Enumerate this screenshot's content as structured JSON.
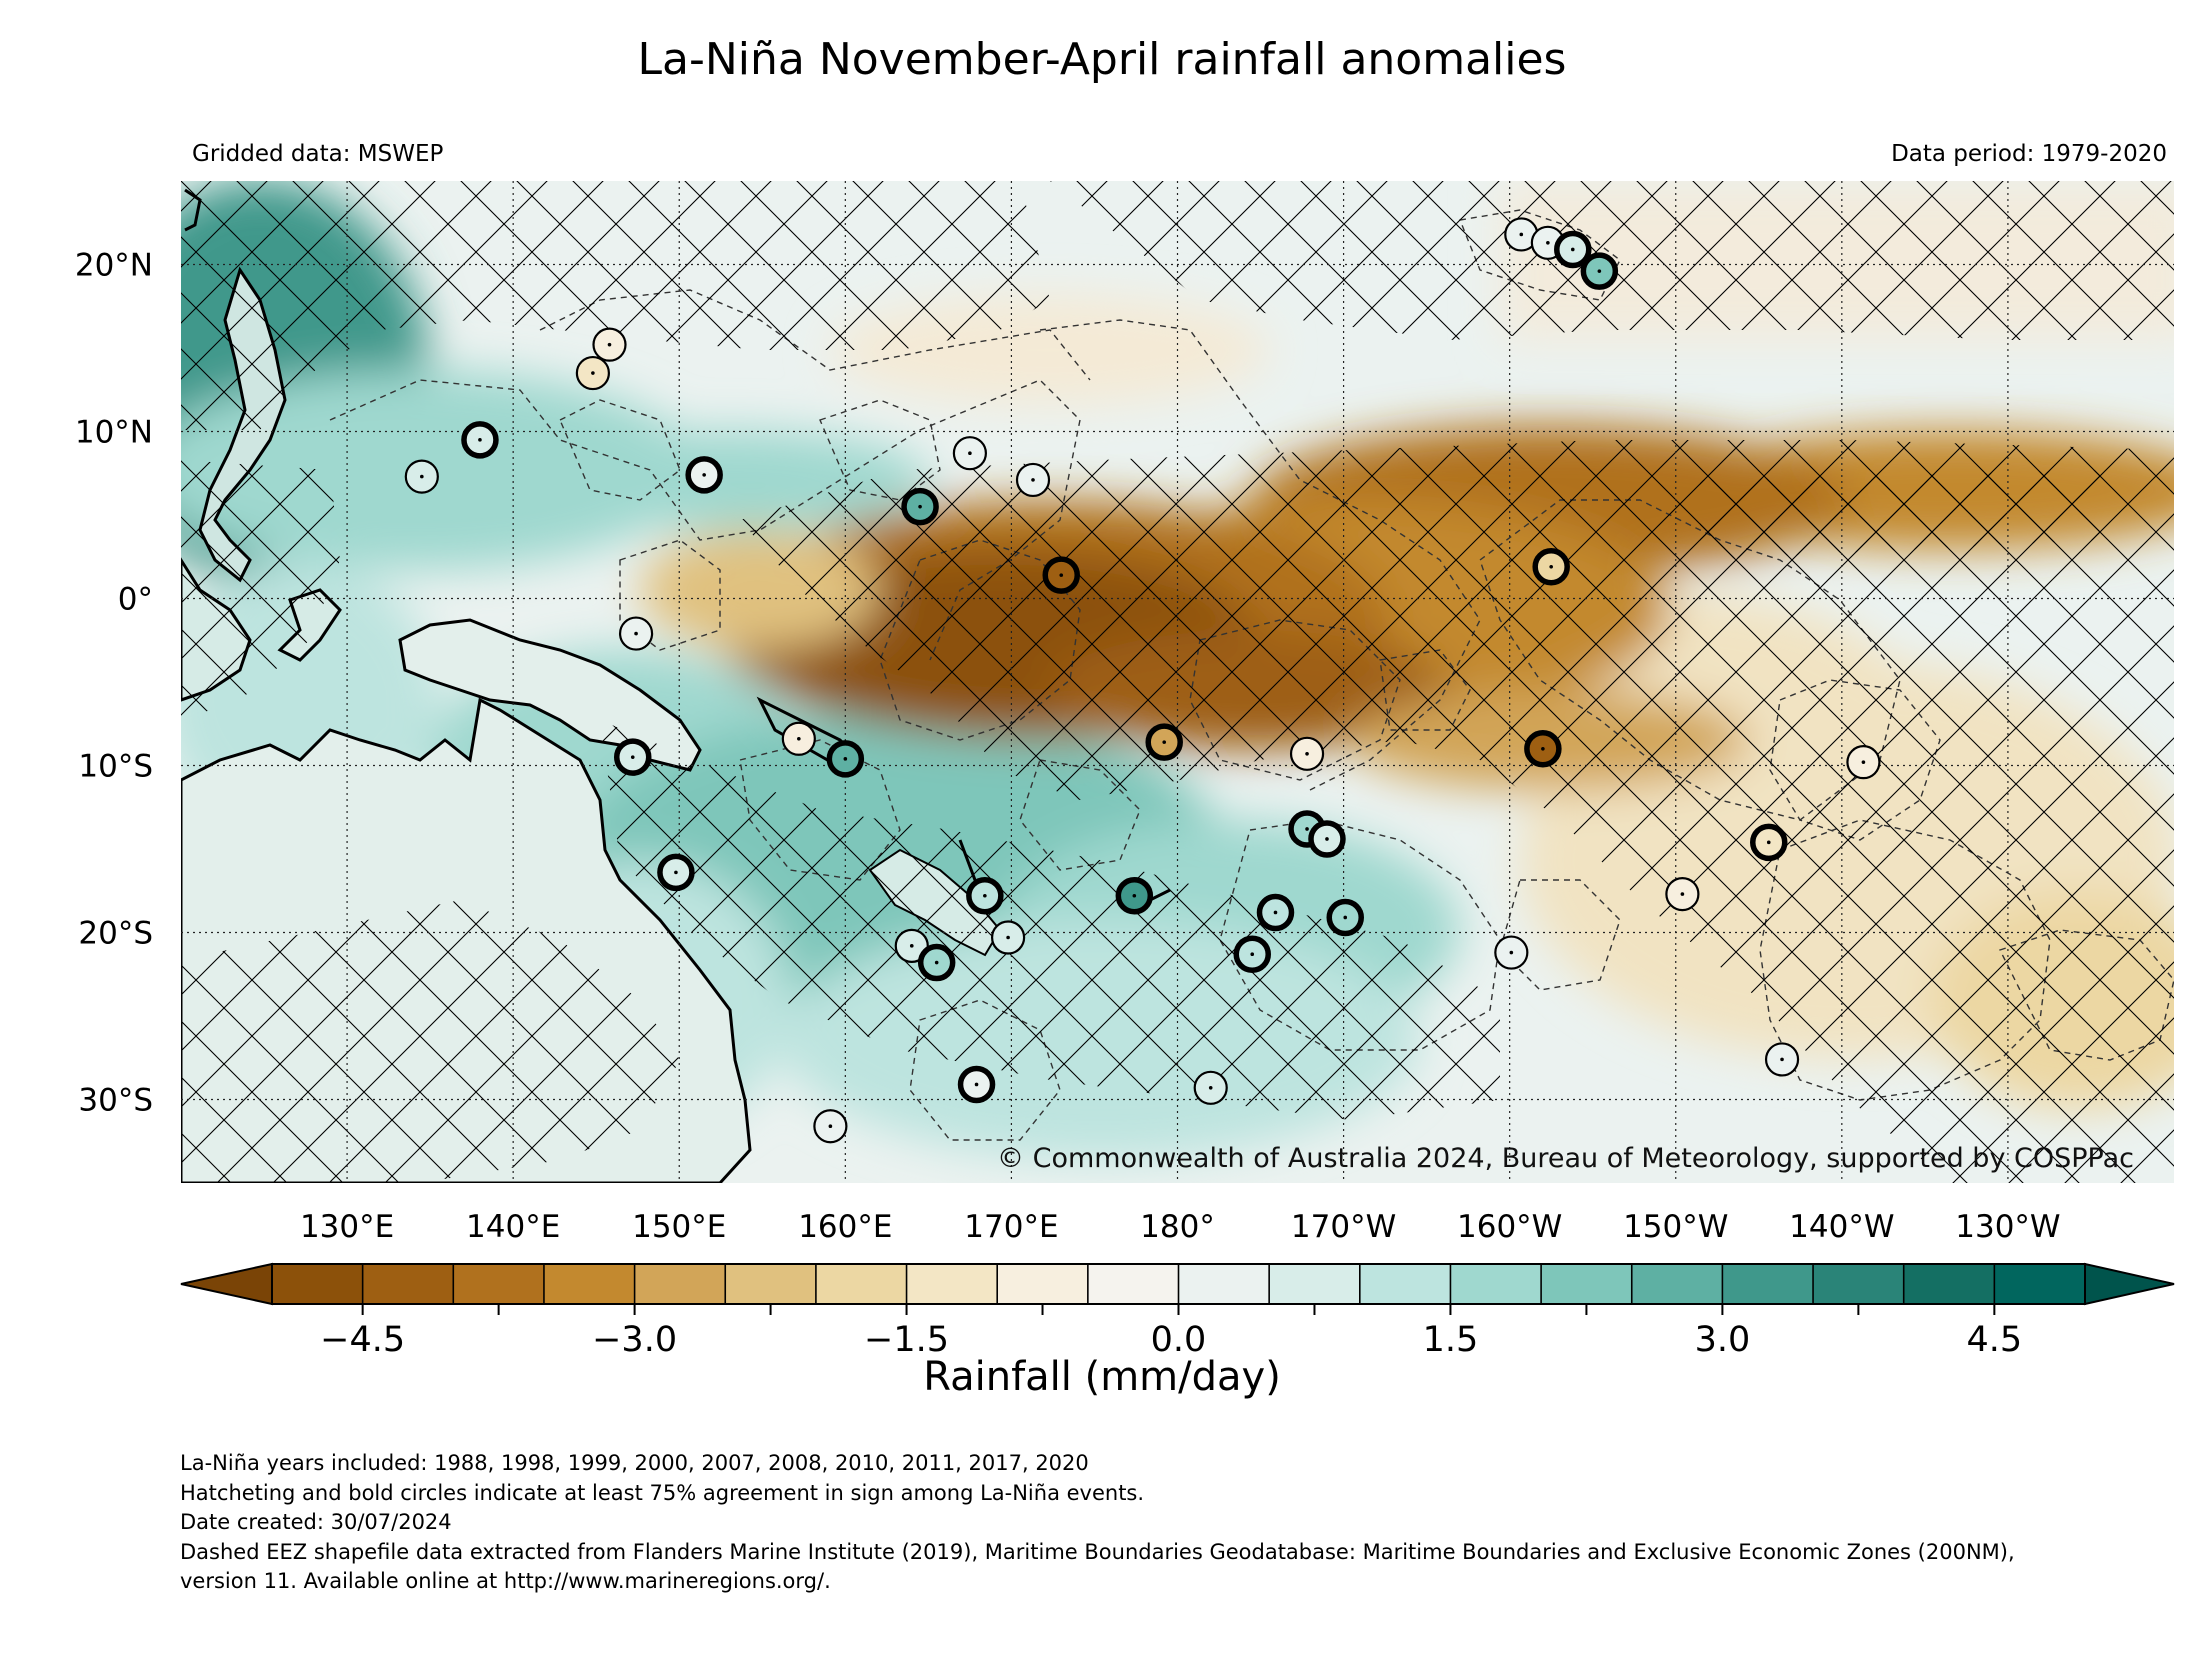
{
  "title": "La-Niña November-April rainfall anomalies",
  "subtitle_left": "Gridded data: MSWEP",
  "subtitle_right": "Data period: 1979-2020",
  "copyright": "© Commonwealth of Australia 2024, Bureau of Meteorology, supported by COSPPac",
  "map": {
    "lon_range": [
      120,
      240
    ],
    "lat_range": [
      -35,
      25
    ],
    "lon_ticks": [
      {
        "lon": 130,
        "label": "130°E"
      },
      {
        "lon": 140,
        "label": "140°E"
      },
      {
        "lon": 150,
        "label": "150°E"
      },
      {
        "lon": 160,
        "label": "160°E"
      },
      {
        "lon": 170,
        "label": "170°E"
      },
      {
        "lon": 180,
        "label": "180°"
      },
      {
        "lon": 190,
        "label": "170°W"
      },
      {
        "lon": 200,
        "label": "160°W"
      },
      {
        "lon": 210,
        "label": "150°W"
      },
      {
        "lon": 220,
        "label": "140°W"
      },
      {
        "lon": 230,
        "label": "130°W"
      }
    ],
    "lat_ticks": [
      {
        "lat": 20,
        "label": "20°N"
      },
      {
        "lat": 10,
        "label": "10°N"
      },
      {
        "lat": 0,
        "label": "0°"
      },
      {
        "lat": -10,
        "label": "10°S"
      },
      {
        "lat": -20,
        "label": "20°S"
      },
      {
        "lat": -30,
        "label": "30°S"
      }
    ],
    "gridlines": "dotted",
    "hatching": "cross-hatch where ≥75% agreement",
    "stations": [
      {
        "lon": 164.5,
        "lat": 5.5,
        "anomaly": 2.5,
        "bold": true
      },
      {
        "lon": 138.0,
        "lat": 9.5,
        "anomaly": 0.5,
        "bold": true
      },
      {
        "lon": 134.5,
        "lat": 7.3,
        "anomaly": 0.5,
        "bold": false
      },
      {
        "lon": 151.5,
        "lat": 7.4,
        "anomaly": 0.4,
        "bold": true
      },
      {
        "lon": 145.8,
        "lat": 15.2,
        "anomaly": -0.7,
        "bold": false
      },
      {
        "lon": 144.8,
        "lat": 13.5,
        "anomaly": -1.2,
        "bold": false
      },
      {
        "lon": 167.5,
        "lat": 8.7,
        "anomaly": 0.2,
        "bold": false
      },
      {
        "lon": 171.3,
        "lat": 7.1,
        "anomaly": 0.3,
        "bold": false
      },
      {
        "lon": 173.0,
        "lat": 1.4,
        "anomaly": -4.5,
        "bold": true
      },
      {
        "lon": 147.4,
        "lat": -2.1,
        "anomaly": 0.4,
        "bold": false
      },
      {
        "lon": 157.2,
        "lat": -8.4,
        "anomaly": -1.0,
        "bold": false
      },
      {
        "lon": 160.0,
        "lat": -9.6,
        "anomaly": 2.5,
        "bold": true
      },
      {
        "lon": 147.2,
        "lat": -9.5,
        "anomaly": 0.8,
        "bold": true
      },
      {
        "lon": 149.8,
        "lat": -16.4,
        "anomaly": 0.5,
        "bold": true
      },
      {
        "lon": 168.4,
        "lat": -17.8,
        "anomaly": 1.0,
        "bold": true
      },
      {
        "lon": 177.4,
        "lat": -17.8,
        "anomaly": 3.3,
        "bold": true
      },
      {
        "lon": 164.0,
        "lat": -20.8,
        "anomaly": 0.5,
        "bold": false
      },
      {
        "lon": 165.5,
        "lat": -21.8,
        "anomaly": 1.5,
        "bold": true
      },
      {
        "lon": 169.8,
        "lat": -20.3,
        "anomaly": 0.6,
        "bold": false
      },
      {
        "lon": 167.9,
        "lat": -29.1,
        "anomaly": 0.2,
        "bold": true
      },
      {
        "lon": 159.1,
        "lat": -31.6,
        "anomaly": 0.1,
        "bold": false
      },
      {
        "lon": 179.2,
        "lat": -8.6,
        "anomaly": -3.0,
        "bold": true
      },
      {
        "lon": 187.8,
        "lat": -9.3,
        "anomaly": -1.0,
        "bold": false
      },
      {
        "lon": 187.8,
        "lat": -13.8,
        "anomaly": 1.5,
        "bold": true
      },
      {
        "lon": 189.0,
        "lat": -14.4,
        "anomaly": 0.5,
        "bold": true
      },
      {
        "lon": 185.9,
        "lat": -18.8,
        "anomaly": 1.2,
        "bold": true
      },
      {
        "lon": 184.5,
        "lat": -21.3,
        "anomaly": 1.0,
        "bold": true
      },
      {
        "lon": 190.1,
        "lat": -19.1,
        "anomaly": 1.5,
        "bold": true
      },
      {
        "lon": 182.0,
        "lat": -29.3,
        "anomaly": 0.5,
        "bold": false
      },
      {
        "lon": 202.5,
        "lat": 1.9,
        "anomaly": -2.0,
        "bold": true
      },
      {
        "lon": 202.0,
        "lat": -9.0,
        "anomaly": -4.5,
        "bold": true
      },
      {
        "lon": 200.1,
        "lat": -21.2,
        "anomaly": 0.3,
        "bold": false
      },
      {
        "lon": 210.4,
        "lat": -17.7,
        "anomaly": -0.9,
        "bold": false
      },
      {
        "lon": 215.6,
        "lat": -14.6,
        "anomaly": -1.5,
        "bold": true
      },
      {
        "lon": 221.3,
        "lat": -9.8,
        "anomaly": -1.0,
        "bold": false
      },
      {
        "lon": 216.4,
        "lat": -27.6,
        "anomaly": 0.1,
        "bold": false
      },
      {
        "lon": 200.7,
        "lat": 21.8,
        "anomaly": 0.3,
        "bold": false
      },
      {
        "lon": 202.3,
        "lat": 21.3,
        "anomaly": 0.3,
        "bold": false
      },
      {
        "lon": 203.8,
        "lat": 20.9,
        "anomaly": 0.5,
        "bold": true
      },
      {
        "lon": 205.4,
        "lat": 19.6,
        "anomaly": 2.0,
        "bold": true
      }
    ]
  },
  "colorbar": {
    "label": "Rainfall (mm/day)",
    "range": [
      -5,
      5
    ],
    "step": 0.5,
    "extend": "both",
    "tick_labels": [
      "−4.5",
      "−3.0",
      "−1.5",
      "0.0",
      "1.5",
      "3.0",
      "4.5"
    ],
    "tick_values": [
      -4.5,
      -3.0,
      -1.5,
      0.0,
      1.5,
      3.0,
      4.5
    ],
    "colors": [
      "#8c510a",
      "#9e5f12",
      "#b0711e",
      "#c3892f",
      "#d2a558",
      "#e0c17f",
      "#ecd7a3",
      "#f3e6c5",
      "#f7efdf",
      "#f5f3ee",
      "#ebf2f0",
      "#d8ede9",
      "#bde4df",
      "#9fd8cf",
      "#7ec6ba",
      "#5eb0a3",
      "#3f988b",
      "#2a8478",
      "#146f63",
      "#01665e"
    ],
    "under_color": "#7a4406",
    "over_color": "#00544c"
  },
  "footnotes": [
    "La-Niña years included: 1988, 1998, 1999, 2000, 2007, 2008, 2010, 2011, 2017, 2020",
    "Hatcheting and bold circles indicate at least 75% agreement in sign among La-Niña events.",
    "Date created: 30/07/2024",
    "Dashed EEZ shapefile data extracted from Flanders Marine Institute (2019), Maritime Boundaries Geodatabase: Maritime Boundaries and Exclusive Economic Zones (200NM),",
    "version 11. Available online at http://www.marineregions.org/."
  ]
}
